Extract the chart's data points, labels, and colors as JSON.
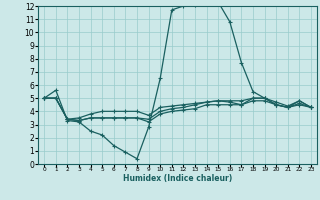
{
  "xlabel": "Humidex (Indice chaleur)",
  "bg_color": "#cce8e8",
  "grid_color": "#99cccc",
  "line_color": "#1a6060",
  "xlim": [
    -0.5,
    23.5
  ],
  "ylim": [
    0,
    12
  ],
  "xticks": [
    0,
    1,
    2,
    3,
    4,
    5,
    6,
    7,
    8,
    9,
    10,
    11,
    12,
    13,
    14,
    15,
    16,
    17,
    18,
    19,
    20,
    21,
    22,
    23
  ],
  "yticks": [
    0,
    1,
    2,
    3,
    4,
    5,
    6,
    7,
    8,
    9,
    10,
    11,
    12
  ],
  "lines": [
    {
      "x": [
        0,
        1,
        2,
        3,
        4,
        5,
        6,
        7,
        8,
        9,
        10,
        11,
        12,
        13,
        14,
        15,
        16,
        17,
        18,
        19,
        20,
        21,
        22,
        23
      ],
      "y": [
        5.0,
        5.6,
        3.3,
        3.2,
        2.5,
        2.2,
        1.4,
        0.9,
        0.4,
        2.8,
        6.5,
        11.7,
        12.0,
        12.1,
        12.2,
        12.3,
        10.8,
        7.7,
        5.5,
        5.0,
        4.7,
        4.4,
        4.8,
        4.3
      ]
    },
    {
      "x": [
        0,
        1,
        2,
        3,
        4,
        5,
        6,
        7,
        8,
        9,
        10,
        11,
        12,
        13,
        14,
        15,
        16,
        17,
        18,
        19,
        20,
        21,
        22,
        23
      ],
      "y": [
        5.0,
        5.0,
        3.4,
        3.3,
        3.5,
        3.5,
        3.5,
        3.5,
        3.5,
        3.2,
        3.8,
        4.0,
        4.1,
        4.2,
        4.5,
        4.5,
        4.5,
        4.5,
        5.0,
        5.0,
        4.5,
        4.3,
        4.5,
        4.3
      ]
    },
    {
      "x": [
        0,
        1,
        2,
        3,
        4,
        5,
        6,
        7,
        8,
        9,
        10,
        11,
        12,
        13,
        14,
        15,
        16,
        17,
        18,
        19,
        20,
        21,
        22,
        23
      ],
      "y": [
        5.0,
        5.0,
        3.4,
        3.5,
        3.8,
        4.0,
        4.0,
        4.0,
        4.0,
        3.7,
        4.3,
        4.4,
        4.5,
        4.6,
        4.7,
        4.8,
        4.7,
        4.5,
        4.8,
        4.8,
        4.5,
        4.3,
        4.6,
        4.3
      ]
    },
    {
      "x": [
        0,
        1,
        2,
        3,
        4,
        5,
        6,
        7,
        8,
        9,
        10,
        11,
        12,
        13,
        14,
        15,
        16,
        17,
        18,
        19,
        20,
        21,
        22,
        23
      ],
      "y": [
        5.0,
        5.0,
        3.4,
        3.3,
        3.5,
        3.5,
        3.5,
        3.5,
        3.5,
        3.4,
        4.0,
        4.2,
        4.3,
        4.5,
        4.7,
        4.8,
        4.8,
        4.8,
        5.0,
        5.0,
        4.5,
        4.3,
        4.8,
        4.3
      ]
    }
  ]
}
